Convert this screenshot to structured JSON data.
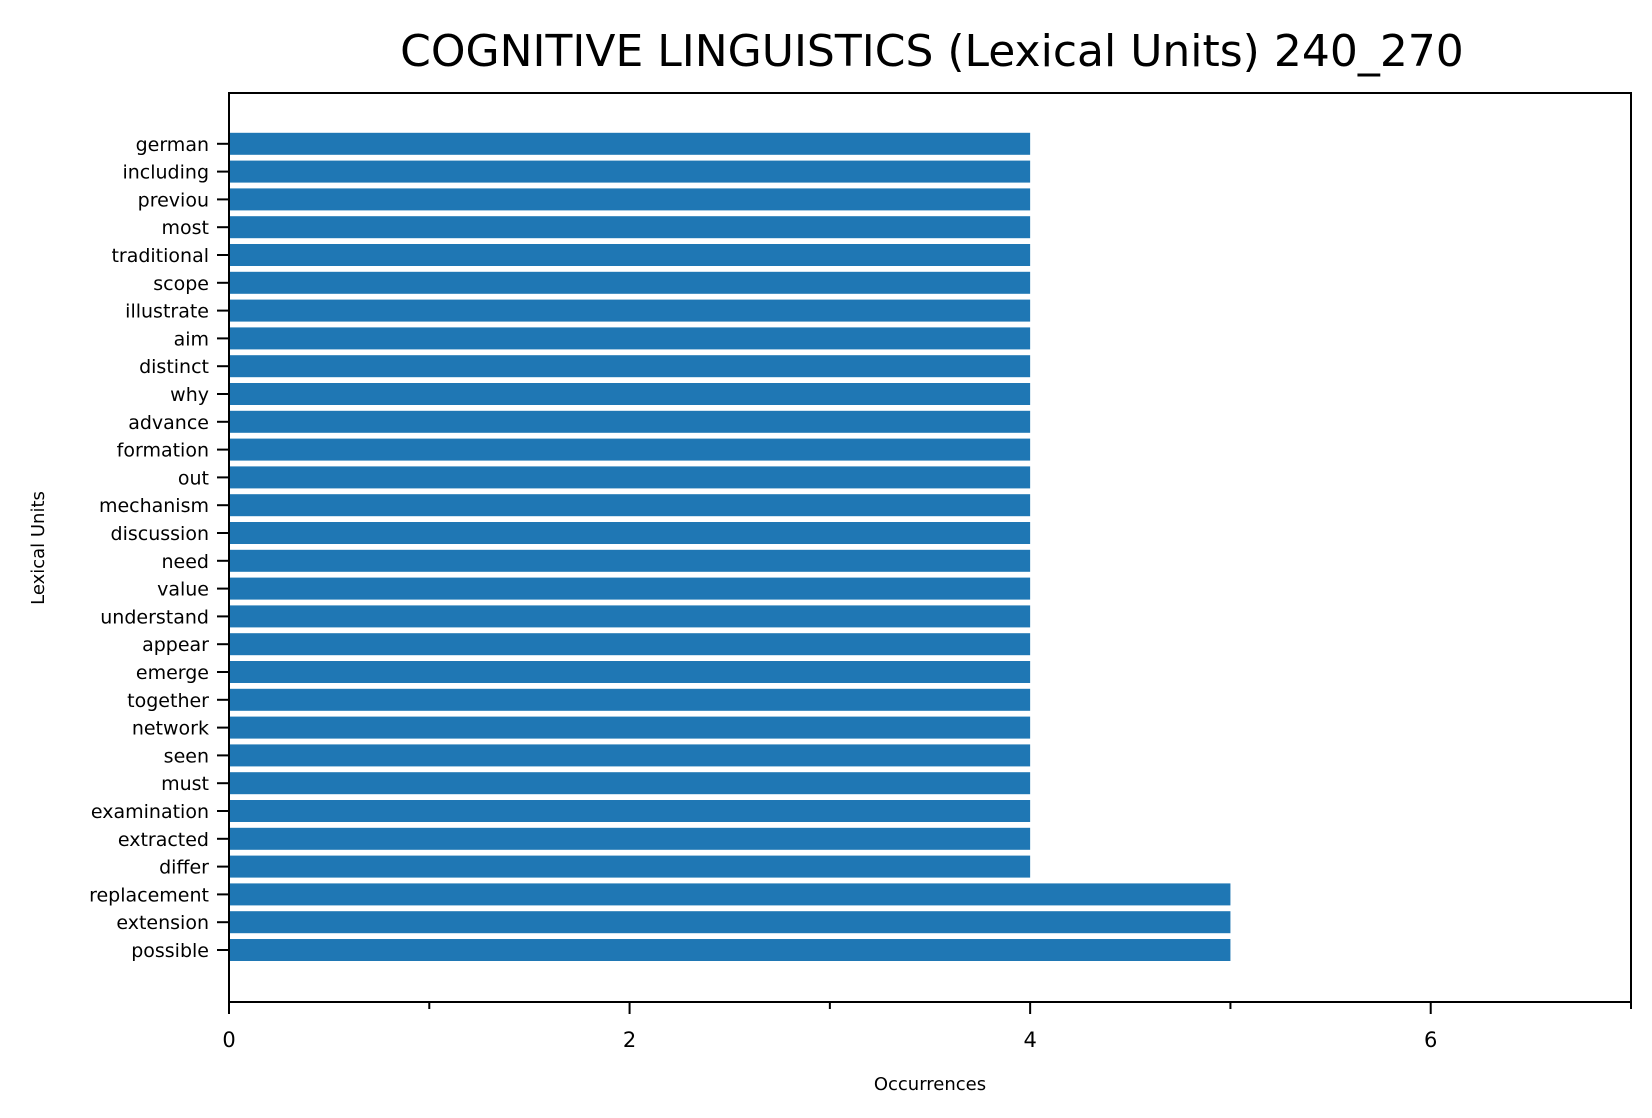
{
  "chart_data": {
    "type": "bar",
    "orientation": "horizontal",
    "title": "COGNITIVE LINGUISTICS (Lexical Units) 240_270",
    "xlabel": "Occurrences",
    "ylabel": "Lexical Units",
    "xlim": [
      0,
      7
    ],
    "x_ticks": [
      0,
      2,
      4,
      6
    ],
    "x_minor_ticks": [
      1,
      3,
      5,
      7
    ],
    "grid": false,
    "bar_color": "#1f77b4",
    "categories": [
      "possible",
      "extension",
      "replacement",
      "differ",
      "extracted",
      "examination",
      "must",
      "seen",
      "network",
      "together",
      "emerge",
      "appear",
      "understand",
      "value",
      "need",
      "discussion",
      "mechanism",
      "out",
      "formation",
      "advance",
      "why",
      "distinct",
      "aim",
      "illustrate",
      "scope",
      "traditional",
      "most",
      "previou",
      "including",
      "german"
    ],
    "values": [
      5,
      5,
      5,
      4,
      4,
      4,
      4,
      4,
      4,
      4,
      4,
      4,
      4,
      4,
      4,
      4,
      4,
      4,
      4,
      4,
      4,
      4,
      4,
      4,
      4,
      4,
      4,
      4,
      4,
      4
    ]
  }
}
